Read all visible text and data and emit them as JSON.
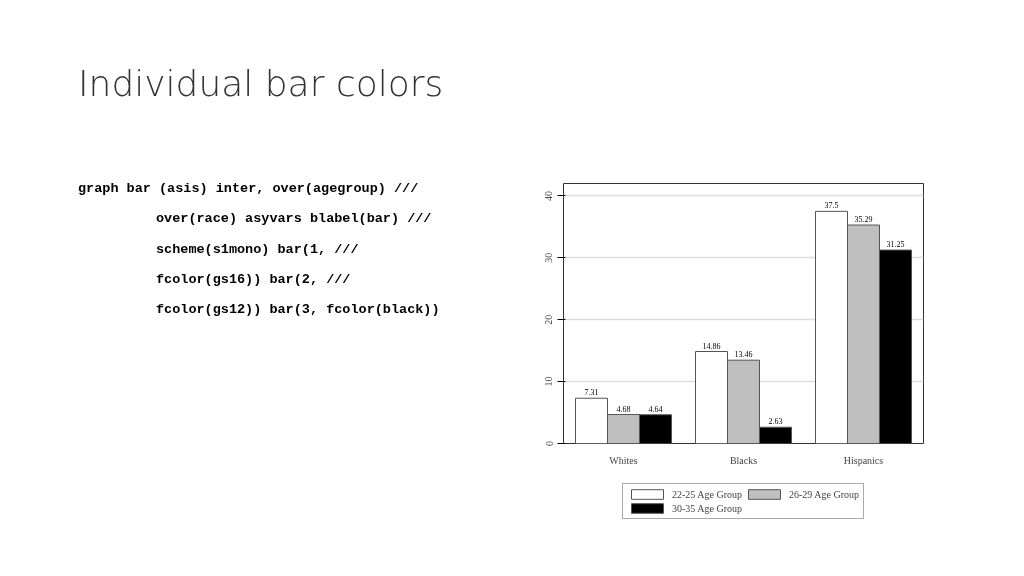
{
  "chart_data": {
    "type": "bar",
    "title": "Individual bar colors",
    "annotations": [
      "graph bar (asis) inter, over(agegroup) ///",
      "over(race) asyvars blabel(bar) ///",
      "scheme(s1mono) bar(1, ///",
      "fcolor(gs16)) bar(2, ///",
      "fcolor(gs12)) bar(3, fcolor(black))"
    ],
    "categories": [
      "Whites",
      "Blacks",
      "Hispanics"
    ],
    "series": [
      {
        "name": "22-25 Age Group",
        "color": "#ffffff",
        "values": [
          7.31,
          14.86,
          37.5
        ]
      },
      {
        "name": "26-29 Age Group",
        "color": "#bfbfbf",
        "values": [
          4.68,
          13.46,
          35.29
        ]
      },
      {
        "name": "30-35 Age Group",
        "color": "#000000",
        "values": [
          4.64,
          2.63,
          31.25
        ]
      }
    ],
    "ylim": [
      0,
      42
    ],
    "yticks": [
      0,
      10,
      20,
      30,
      40
    ],
    "grid": "y",
    "legend": "bottom",
    "data_labels": true
  }
}
